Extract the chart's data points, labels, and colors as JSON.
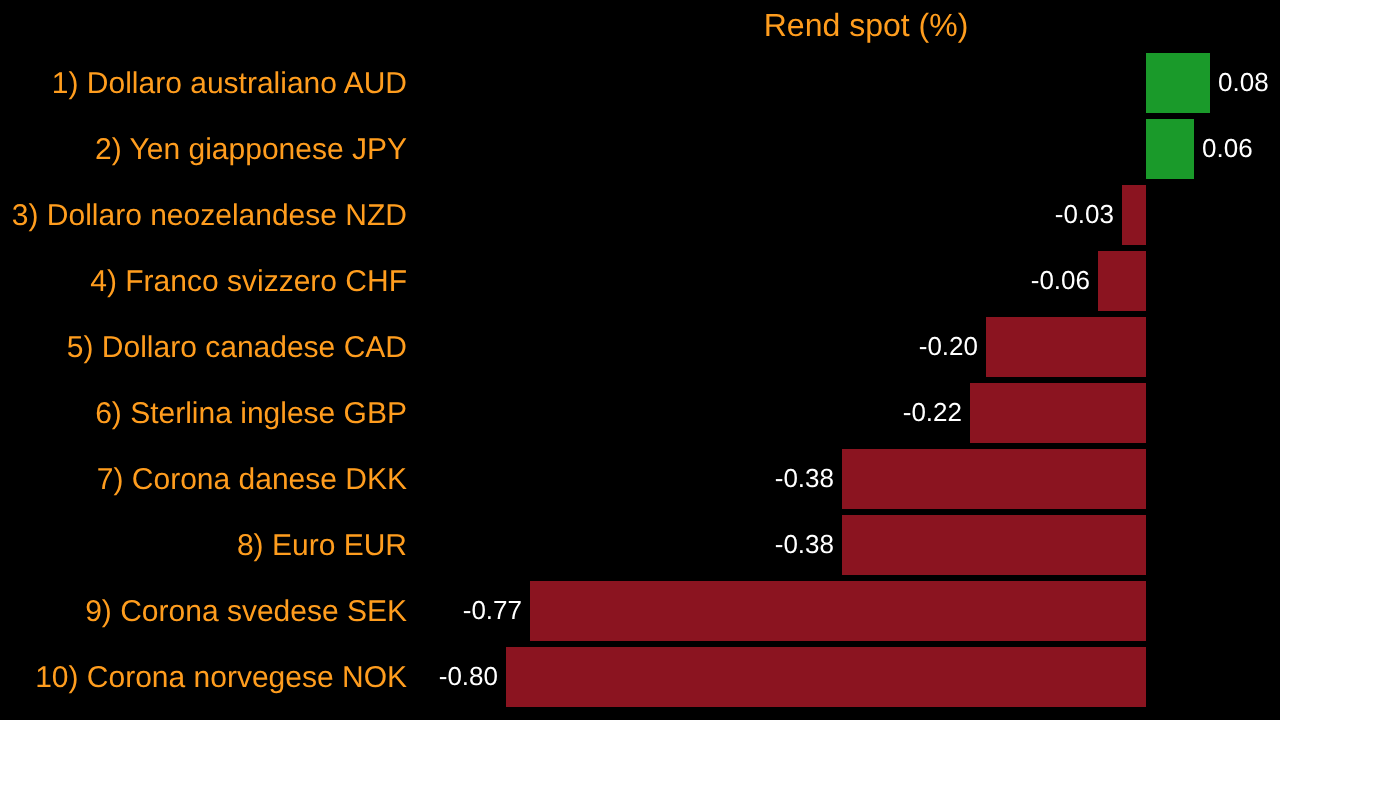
{
  "chart_data": {
    "type": "bar",
    "orientation": "horizontal",
    "title": "Rend spot (%)",
    "categories": [
      "1) Dollaro australiano AUD",
      "2) Yen giapponese JPY",
      "3) Dollaro neozelandese NZD",
      "4) Franco svizzero CHF",
      "5) Dollaro canadese CAD",
      "6) Sterlina inglese GBP",
      "7) Corona danese DKK",
      "8) Euro EUR",
      "9) Corona svedese SEK",
      "10) Corona norvegese NOK"
    ],
    "values": [
      0.08,
      0.06,
      -0.03,
      -0.06,
      -0.2,
      -0.22,
      -0.38,
      -0.38,
      -0.77,
      -0.8
    ],
    "value_labels": [
      "0.08",
      "0.06",
      "-0.03",
      "-0.06",
      "-0.20",
      "-0.22",
      "-0.38",
      "-0.38",
      "-0.77",
      "-0.80"
    ],
    "colors": [
      "#1a9a2a",
      "#1a9a2a",
      "#8b1420",
      "#8b1420",
      "#8b1420",
      "#8b1420",
      "#8b1420",
      "#8b1420",
      "#8b1420",
      "#8b1420"
    ],
    "tick_labels": "y",
    "grid": false
  }
}
